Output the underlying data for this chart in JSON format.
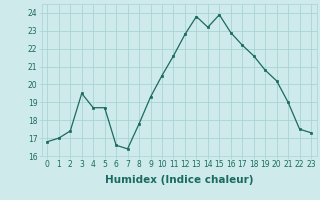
{
  "x": [
    0,
    1,
    2,
    3,
    4,
    5,
    6,
    7,
    8,
    9,
    10,
    11,
    12,
    13,
    14,
    15,
    16,
    17,
    18,
    19,
    20,
    21,
    22,
    23
  ],
  "y": [
    16.8,
    17.0,
    17.4,
    19.5,
    18.7,
    18.7,
    16.6,
    16.4,
    17.8,
    19.3,
    20.5,
    21.6,
    22.8,
    23.8,
    23.2,
    23.9,
    22.9,
    22.2,
    21.6,
    20.8,
    20.2,
    19.0,
    17.5,
    17.3
  ],
  "line_color": "#1a6b5f",
  "marker": "s",
  "marker_size": 2.0,
  "bg_color": "#ceeaea",
  "grid_color": "#a8d4d4",
  "xlabel": "Humidex (Indice chaleur)",
  "ylim": [
    16,
    24.5
  ],
  "xlim": [
    -0.5,
    23.5
  ],
  "yticks": [
    16,
    17,
    18,
    19,
    20,
    21,
    22,
    23,
    24
  ],
  "xticks": [
    0,
    1,
    2,
    3,
    4,
    5,
    6,
    7,
    8,
    9,
    10,
    11,
    12,
    13,
    14,
    15,
    16,
    17,
    18,
    19,
    20,
    21,
    22,
    23
  ],
  "tick_labelsize": 5.5,
  "xlabel_fontsize": 7.5,
  "xlabel_fontweight": "bold",
  "linewidth": 0.9
}
